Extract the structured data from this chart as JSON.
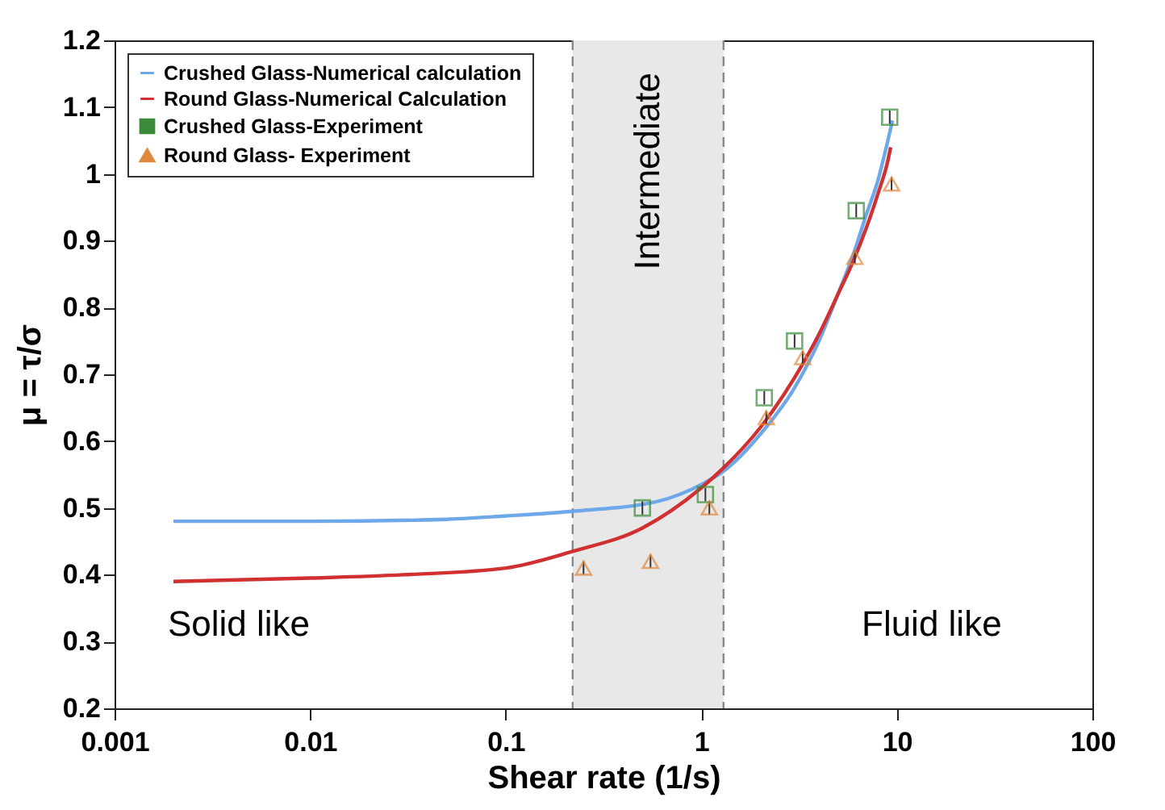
{
  "chart_data": {
    "type": "line",
    "xlabel": "Shear rate (1/s)",
    "ylabel": "μ = τ/σ",
    "log": "x",
    "xlim": [
      0.001,
      100
    ],
    "xticks": [
      {
        "value": 0.001,
        "label": "0.001"
      },
      {
        "value": 0.01,
        "label": "0.01"
      },
      {
        "value": 0.1,
        "label": "0.1"
      },
      {
        "value": 1,
        "label": "1"
      },
      {
        "value": 10,
        "label": "10"
      },
      {
        "value": 100,
        "label": "100"
      }
    ],
    "ylim": [
      0.2,
      1.2
    ],
    "yticks": [
      {
        "value": 0.2,
        "label": "0.2"
      },
      {
        "value": 0.3,
        "label": "0.3"
      },
      {
        "value": 0.4,
        "label": "0.4"
      },
      {
        "value": 0.5,
        "label": "0.5"
      },
      {
        "value": 0.6,
        "label": "0.6"
      },
      {
        "value": 0.7,
        "label": "0.7"
      },
      {
        "value": 0.8,
        "label": "0.8"
      },
      {
        "value": 0.9,
        "label": "0.9"
      },
      {
        "value": 1,
        "label": "1"
      },
      {
        "value": 1.1,
        "label": "1.1"
      },
      {
        "value": 1.2,
        "label": "1.2"
      }
    ],
    "legend": "top left",
    "grid": false,
    "bands": [
      {
        "axis": "x",
        "from": 0.22,
        "to": 1.3,
        "label": "Intermediate",
        "color": "#e8e8e8"
      }
    ],
    "ref_lines": [
      {
        "axis": "x",
        "value": 0.22,
        "line_style": "dashed",
        "color": "#888888"
      },
      {
        "axis": "x",
        "value": 1.3,
        "line_style": "dashed",
        "color": "#888888"
      }
    ],
    "annotations": [
      "Solid like",
      "Fluid like"
    ],
    "series": [
      {
        "name": "Crushed Glass-Numerical calculation",
        "color": "#6fa8e8",
        "x": [
          0.002,
          0.01,
          0.05,
          0.1,
          0.22,
          0.6,
          1,
          1.3,
          2,
          3,
          4,
          5,
          6,
          7,
          8,
          9,
          9.5
        ],
        "values": [
          0.48,
          0.48,
          0.483,
          0.488,
          0.495,
          0.51,
          0.535,
          0.555,
          0.61,
          0.68,
          0.75,
          0.82,
          0.88,
          0.94,
          0.99,
          1.05,
          1.08
        ]
      },
      {
        "name": "Round Glass-Numerical Calculation",
        "color": "#d03030",
        "x": [
          0.002,
          0.01,
          0.03,
          0.1,
          0.22,
          0.5,
          1,
          1.3,
          2,
          3,
          4,
          5,
          6,
          7,
          8,
          9,
          9.3
        ],
        "values": [
          0.39,
          0.395,
          0.4,
          0.41,
          0.435,
          0.47,
          0.53,
          0.56,
          0.62,
          0.695,
          0.76,
          0.82,
          0.87,
          0.92,
          0.97,
          1.02,
          1.04
        ]
      },
      {
        "name": "Crushed Glass-Experiment",
        "type": "scatter",
        "marker": "square",
        "color": "#3a8a3a",
        "x": [
          0.5,
          1.05,
          2.1,
          3,
          6.2,
          9.2
        ],
        "values": [
          0.5,
          0.52,
          0.665,
          0.75,
          0.945,
          1.085
        ],
        "errors": [
          0.01,
          0.01,
          0.01,
          0.01,
          0.01,
          0.01
        ]
      },
      {
        "name": "Round Glass- Experiment",
        "type": "scatter",
        "marker": "triangle",
        "color": "#e08a40",
        "x": [
          0.25,
          0.55,
          1.1,
          2.15,
          3.3,
          6.1,
          9.4
        ],
        "values": [
          0.41,
          0.42,
          0.5,
          0.635,
          0.725,
          0.875,
          0.985
        ],
        "errors": [
          0.01,
          0.01,
          0.01,
          0.01,
          0.01,
          0.01,
          0.01
        ]
      }
    ]
  }
}
